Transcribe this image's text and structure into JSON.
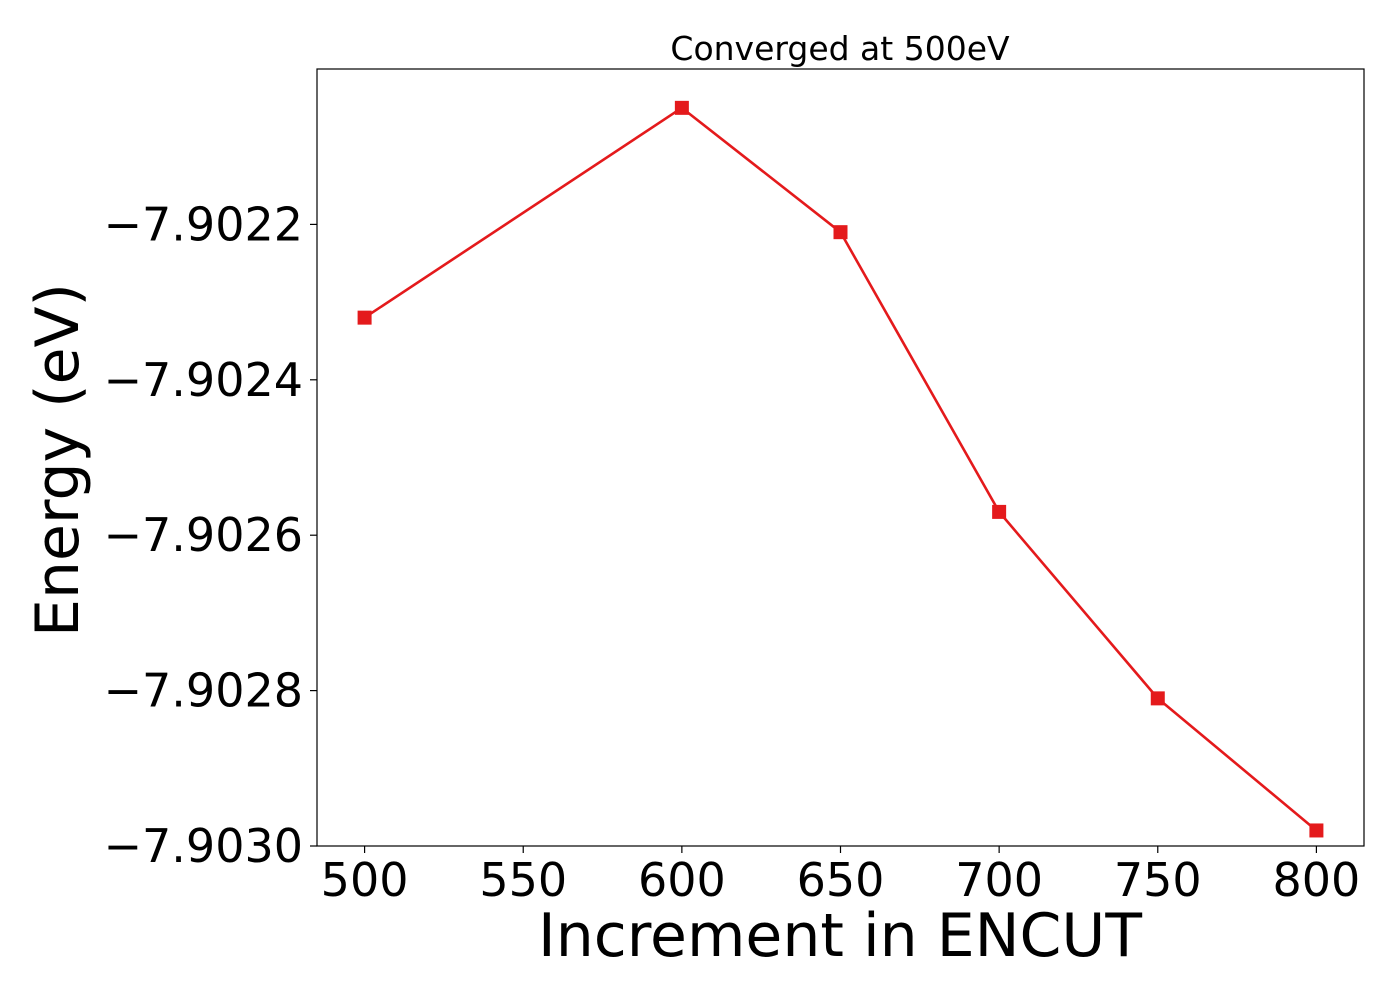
{
  "chart_data": {
    "type": "line",
    "title": "Converged at 500eV",
    "xlabel": "Increment in ENCUT",
    "ylabel": "Energy (eV)",
    "x": [
      500,
      600,
      650,
      700,
      750,
      800
    ],
    "series": [
      {
        "values": [
          -7.90232,
          -7.90205,
          -7.90221,
          -7.90257,
          -7.90281,
          -7.90298
        ],
        "color": "#e41a1c",
        "marker": "square"
      }
    ],
    "xlim": [
      485,
      815
    ],
    "ylim": [
      -7.903,
      -7.902
    ],
    "xticks": [
      500,
      550,
      600,
      650,
      700,
      750,
      800
    ],
    "xtick_labels": [
      "500",
      "550",
      "600",
      "650",
      "700",
      "750",
      "800"
    ],
    "yticks": [
      -7.9022,
      -7.9024,
      -7.9026,
      -7.9028,
      -7.903
    ],
    "ytick_labels": [
      "−7.9022",
      "−7.9024",
      "−7.9026",
      "−7.9028",
      "−7.9030"
    ],
    "grid": false,
    "legend": "none"
  }
}
